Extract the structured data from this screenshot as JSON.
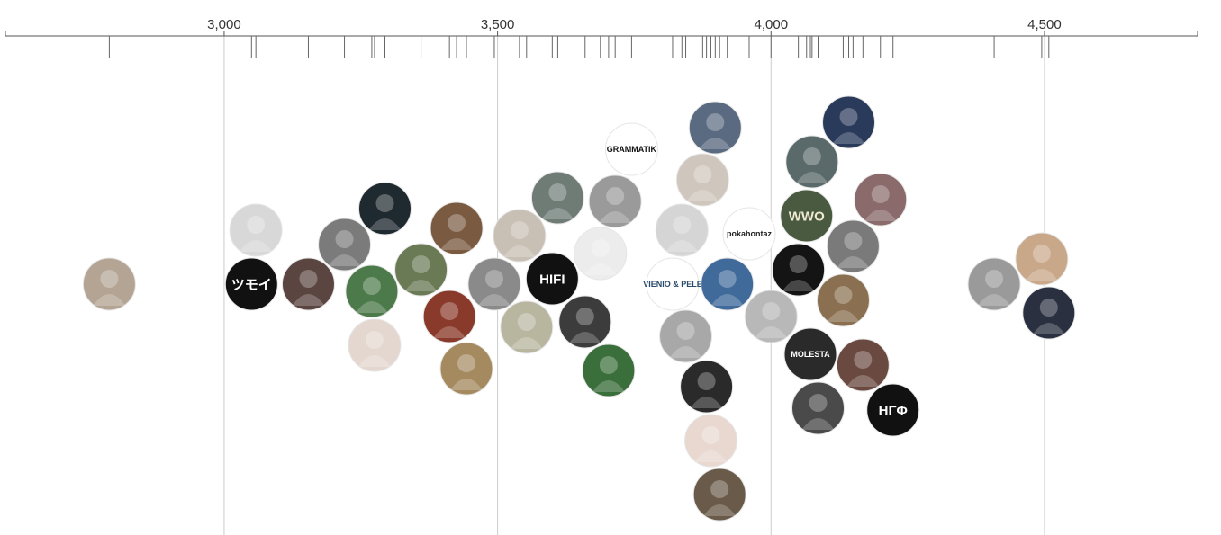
{
  "chart_data": {
    "type": "scatter",
    "title": "",
    "xlabel": "",
    "ylabel": "",
    "xlim": [
      2600,
      4780
    ],
    "grid": true,
    "colors": {
      "axis": "#555555",
      "grid": "#cccccc",
      "rug": "#666666",
      "label": "#333333"
    },
    "x_ticks": [
      {
        "value": 3000,
        "label": "3,000"
      },
      {
        "value": 3500,
        "label": "3,500"
      },
      {
        "value": 4000,
        "label": "4,000"
      },
      {
        "value": 4500,
        "label": "4,500"
      }
    ],
    "points": [
      {
        "x": 2790,
        "fill": "#b3a493",
        "icon": "portrait-icon"
      },
      {
        "x": 3050,
        "fill": "#111111",
        "text": "ツモイ",
        "text_color": "#ffffff",
        "icon": "logo-icon"
      },
      {
        "x": 3058,
        "fill": "#d8d8d8",
        "icon": "portrait-icon"
      },
      {
        "x": 3154,
        "fill": "#5a4540",
        "icon": "portrait-icon"
      },
      {
        "x": 3220,
        "fill": "#7b7b7b",
        "icon": "portrait-icon"
      },
      {
        "x": 3275,
        "fill": "#e4d7cf",
        "icon": "portrait-icon"
      },
      {
        "x": 3294,
        "fill": "#1f2a30",
        "icon": "portrait-icon"
      },
      {
        "x": 3270,
        "fill": "#4c7a4a",
        "icon": "portrait-icon"
      },
      {
        "x": 3360,
        "fill": "#6a7a55",
        "icon": "portrait-icon"
      },
      {
        "x": 3425,
        "fill": "#7a5a40",
        "icon": "portrait-icon"
      },
      {
        "x": 3443,
        "fill": "#a58a60",
        "icon": "portrait-icon"
      },
      {
        "x": 3412,
        "fill": "#8a3a2a",
        "icon": "portrait-icon"
      },
      {
        "x": 3494,
        "fill": "#8a8a8a",
        "icon": "portrait-icon"
      },
      {
        "x": 3540,
        "fill": "#c9c0b5",
        "icon": "portrait-icon"
      },
      {
        "x": 3553,
        "fill": "#b9b6a0",
        "icon": "portrait-icon"
      },
      {
        "x": 3600,
        "fill": "#111111",
        "text": "HIFI",
        "text_color": "#ffffff",
        "icon": "logo-icon"
      },
      {
        "x": 3610,
        "fill": "#6f7c76",
        "icon": "portrait-icon"
      },
      {
        "x": 3660,
        "fill": "#3c3c3c",
        "icon": "portrait-icon"
      },
      {
        "x": 3703,
        "fill": "#3a6e3a",
        "icon": "portrait-icon"
      },
      {
        "x": 3715,
        "fill": "#9a9a9a",
        "icon": "portrait-icon"
      },
      {
        "x": 3688,
        "fill": "#ececec",
        "icon": "portrait-icon"
      },
      {
        "x": 3745,
        "fill": "#ffffff",
        "text": "GRAMMATIK",
        "text_color": "#111111",
        "icon": "logo-icon"
      },
      {
        "x": 3820,
        "fill": "#ffffff",
        "text": "VIENIO & PELE",
        "text_color": "#2a4a6a",
        "icon": "logo-icon"
      },
      {
        "x": 3837,
        "fill": "#d5d5d5",
        "icon": "portrait-icon"
      },
      {
        "x": 3844,
        "fill": "#a8a8a8",
        "icon": "portrait-icon"
      },
      {
        "x": 3875,
        "fill": "#cfc7bd",
        "icon": "portrait-icon"
      },
      {
        "x": 3882,
        "fill": "#2a2a2a",
        "icon": "portrait-icon"
      },
      {
        "x": 3890,
        "fill": "#e8d8d0",
        "icon": "portrait-icon"
      },
      {
        "x": 3898,
        "fill": "#5a6a80",
        "icon": "portrait-icon"
      },
      {
        "x": 3906,
        "fill": "#6a5a4a",
        "icon": "portrait-icon"
      },
      {
        "x": 3920,
        "fill": "#3f6a9a",
        "icon": "portrait-icon"
      },
      {
        "x": 3960,
        "fill": "#ffffff",
        "text": "pokahontaz",
        "text_color": "#222222",
        "icon": "logo-icon"
      },
      {
        "x": 4000,
        "fill": "#b8b8b8",
        "icon": "portrait-icon"
      },
      {
        "x": 4050,
        "fill": "#141414",
        "icon": "portrait-icon"
      },
      {
        "x": 4065,
        "fill": "#4a5a40",
        "text": "WWO",
        "text_color": "#f0ead0",
        "icon": "logo-icon"
      },
      {
        "x": 4072,
        "fill": "#2a2a2a",
        "text": "MOLESTA",
        "text_color": "#ffffff",
        "icon": "logo-icon"
      },
      {
        "x": 4075,
        "fill": "#5a6a6a",
        "icon": "portrait-icon"
      },
      {
        "x": 4086,
        "fill": "#4a4a4a",
        "icon": "portrait-icon"
      },
      {
        "x": 4132,
        "fill": "#8a7050",
        "icon": "portrait-icon"
      },
      {
        "x": 4142,
        "fill": "#2a3a5a",
        "icon": "portrait-icon"
      },
      {
        "x": 4150,
        "fill": "#7a7a7a",
        "icon": "portrait-icon"
      },
      {
        "x": 4168,
        "fill": "#6a4a40",
        "icon": "portrait-icon"
      },
      {
        "x": 4200,
        "fill": "#8a6a6a",
        "icon": "portrait-icon"
      },
      {
        "x": 4223,
        "fill": "#111111",
        "text": "HΓΦ",
        "text_color": "#ffffff",
        "icon": "logo-icon"
      },
      {
        "x": 4408,
        "fill": "#9a9a9a",
        "icon": "portrait-icon"
      },
      {
        "x": 4495,
        "fill": "#c9a88a",
        "icon": "portrait-icon"
      },
      {
        "x": 4508,
        "fill": "#2a3040",
        "icon": "portrait-icon"
      }
    ]
  }
}
